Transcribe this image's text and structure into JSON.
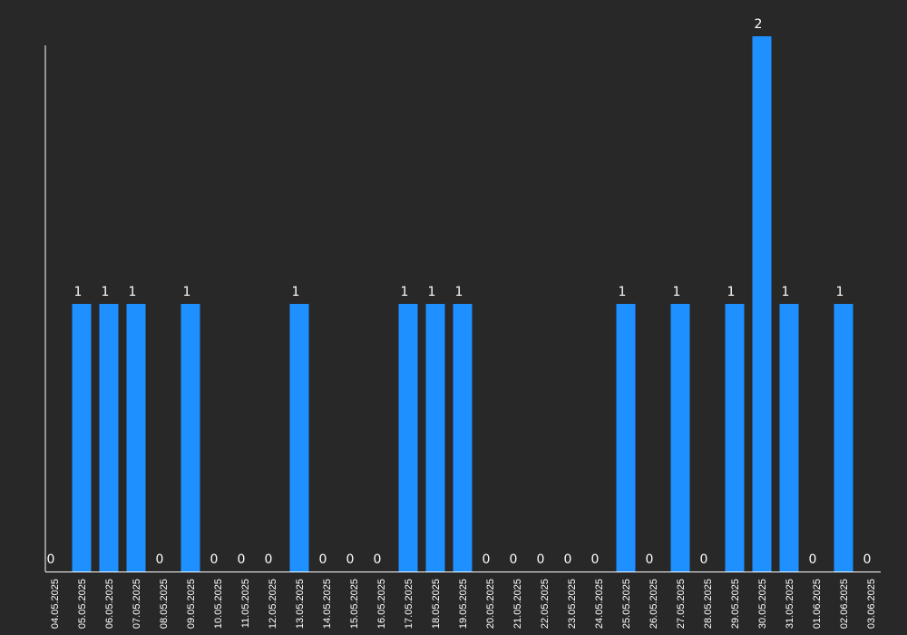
{
  "colors": {
    "background": "#282828",
    "bar": "#1e90ff",
    "axis": "#ffffff",
    "text": "#ffffff"
  },
  "chart_data": {
    "type": "bar",
    "title": "",
    "xlabel": "",
    "ylabel": "",
    "ylim": [
      0,
      2
    ],
    "grid": false,
    "legend": "none",
    "categories": [
      "04.05.2025",
      "05.05.2025",
      "06.05.2025",
      "07.05.2025",
      "08.05.2025",
      "09.05.2025",
      "10.05.2025",
      "11.05.2025",
      "12.05.2025",
      "13.05.2025",
      "14.05.2025",
      "15.05.2025",
      "16.05.2025",
      "17.05.2025",
      "18.05.2025",
      "19.05.2025",
      "20.05.2025",
      "21.05.2025",
      "22.05.2025",
      "23.05.2025",
      "24.05.2025",
      "25.05.2025",
      "26.05.2025",
      "27.05.2025",
      "28.05.2025",
      "29.05.2025",
      "30.05.2025",
      "31.05.2025",
      "01.06.2025",
      "02.06.2025",
      "03.06.2025"
    ],
    "values": [
      0,
      1,
      1,
      1,
      0,
      1,
      0,
      0,
      0,
      1,
      0,
      0,
      0,
      1,
      1,
      1,
      0,
      0,
      0,
      0,
      0,
      1,
      0,
      1,
      0,
      1,
      2,
      1,
      0,
      1,
      0
    ]
  }
}
